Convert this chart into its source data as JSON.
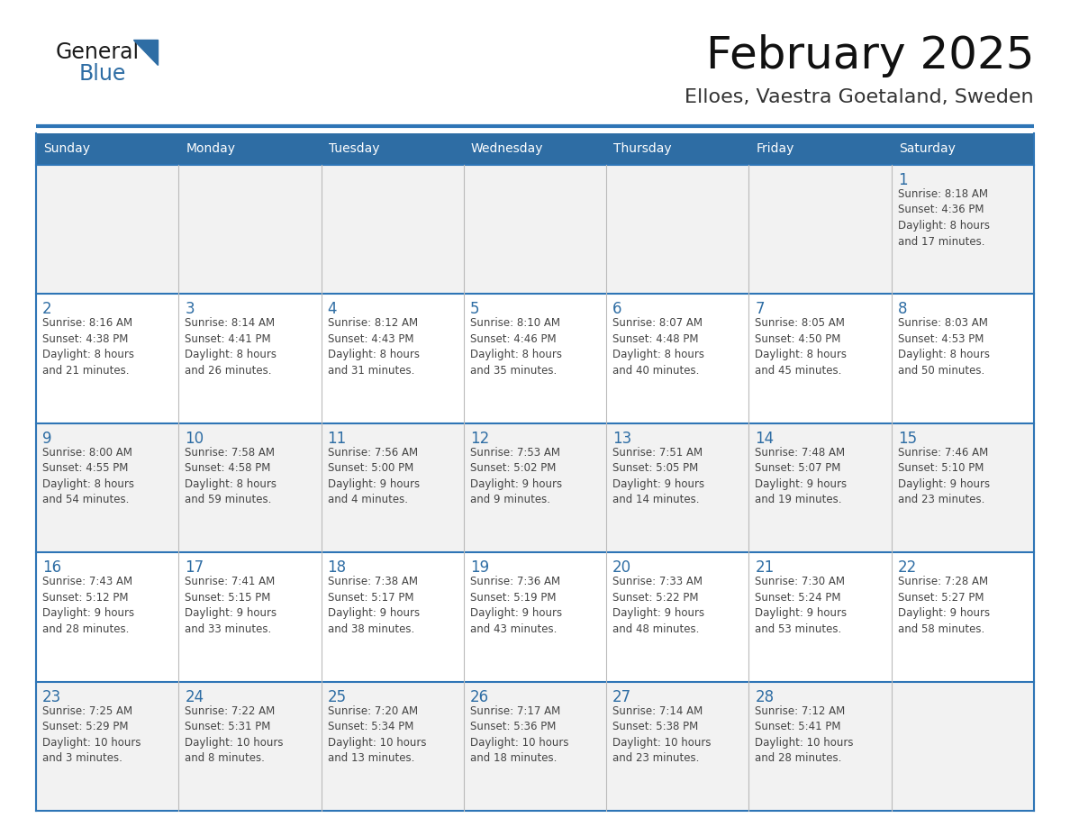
{
  "title": "February 2025",
  "subtitle": "Elloes, Vaestra Goetaland, Sweden",
  "header_bg": "#2E6DA4",
  "header_text_color": "#FFFFFF",
  "cell_bg_odd": "#F2F2F2",
  "cell_bg_even": "#FFFFFF",
  "day_number_color": "#2E6DA4",
  "text_color": "#444444",
  "line_color": "#2E75B6",
  "col_line_color": "#BBBBBB",
  "days_of_week": [
    "Sunday",
    "Monday",
    "Tuesday",
    "Wednesday",
    "Thursday",
    "Friday",
    "Saturday"
  ],
  "weeks": [
    [
      {
        "day": "",
        "info": ""
      },
      {
        "day": "",
        "info": ""
      },
      {
        "day": "",
        "info": ""
      },
      {
        "day": "",
        "info": ""
      },
      {
        "day": "",
        "info": ""
      },
      {
        "day": "",
        "info": ""
      },
      {
        "day": "1",
        "info": "Sunrise: 8:18 AM\nSunset: 4:36 PM\nDaylight: 8 hours\nand 17 minutes."
      }
    ],
    [
      {
        "day": "2",
        "info": "Sunrise: 8:16 AM\nSunset: 4:38 PM\nDaylight: 8 hours\nand 21 minutes."
      },
      {
        "day": "3",
        "info": "Sunrise: 8:14 AM\nSunset: 4:41 PM\nDaylight: 8 hours\nand 26 minutes."
      },
      {
        "day": "4",
        "info": "Sunrise: 8:12 AM\nSunset: 4:43 PM\nDaylight: 8 hours\nand 31 minutes."
      },
      {
        "day": "5",
        "info": "Sunrise: 8:10 AM\nSunset: 4:46 PM\nDaylight: 8 hours\nand 35 minutes."
      },
      {
        "day": "6",
        "info": "Sunrise: 8:07 AM\nSunset: 4:48 PM\nDaylight: 8 hours\nand 40 minutes."
      },
      {
        "day": "7",
        "info": "Sunrise: 8:05 AM\nSunset: 4:50 PM\nDaylight: 8 hours\nand 45 minutes."
      },
      {
        "day": "8",
        "info": "Sunrise: 8:03 AM\nSunset: 4:53 PM\nDaylight: 8 hours\nand 50 minutes."
      }
    ],
    [
      {
        "day": "9",
        "info": "Sunrise: 8:00 AM\nSunset: 4:55 PM\nDaylight: 8 hours\nand 54 minutes."
      },
      {
        "day": "10",
        "info": "Sunrise: 7:58 AM\nSunset: 4:58 PM\nDaylight: 8 hours\nand 59 minutes."
      },
      {
        "day": "11",
        "info": "Sunrise: 7:56 AM\nSunset: 5:00 PM\nDaylight: 9 hours\nand 4 minutes."
      },
      {
        "day": "12",
        "info": "Sunrise: 7:53 AM\nSunset: 5:02 PM\nDaylight: 9 hours\nand 9 minutes."
      },
      {
        "day": "13",
        "info": "Sunrise: 7:51 AM\nSunset: 5:05 PM\nDaylight: 9 hours\nand 14 minutes."
      },
      {
        "day": "14",
        "info": "Sunrise: 7:48 AM\nSunset: 5:07 PM\nDaylight: 9 hours\nand 19 minutes."
      },
      {
        "day": "15",
        "info": "Sunrise: 7:46 AM\nSunset: 5:10 PM\nDaylight: 9 hours\nand 23 minutes."
      }
    ],
    [
      {
        "day": "16",
        "info": "Sunrise: 7:43 AM\nSunset: 5:12 PM\nDaylight: 9 hours\nand 28 minutes."
      },
      {
        "day": "17",
        "info": "Sunrise: 7:41 AM\nSunset: 5:15 PM\nDaylight: 9 hours\nand 33 minutes."
      },
      {
        "day": "18",
        "info": "Sunrise: 7:38 AM\nSunset: 5:17 PM\nDaylight: 9 hours\nand 38 minutes."
      },
      {
        "day": "19",
        "info": "Sunrise: 7:36 AM\nSunset: 5:19 PM\nDaylight: 9 hours\nand 43 minutes."
      },
      {
        "day": "20",
        "info": "Sunrise: 7:33 AM\nSunset: 5:22 PM\nDaylight: 9 hours\nand 48 minutes."
      },
      {
        "day": "21",
        "info": "Sunrise: 7:30 AM\nSunset: 5:24 PM\nDaylight: 9 hours\nand 53 minutes."
      },
      {
        "day": "22",
        "info": "Sunrise: 7:28 AM\nSunset: 5:27 PM\nDaylight: 9 hours\nand 58 minutes."
      }
    ],
    [
      {
        "day": "23",
        "info": "Sunrise: 7:25 AM\nSunset: 5:29 PM\nDaylight: 10 hours\nand 3 minutes."
      },
      {
        "day": "24",
        "info": "Sunrise: 7:22 AM\nSunset: 5:31 PM\nDaylight: 10 hours\nand 8 minutes."
      },
      {
        "day": "25",
        "info": "Sunrise: 7:20 AM\nSunset: 5:34 PM\nDaylight: 10 hours\nand 13 minutes."
      },
      {
        "day": "26",
        "info": "Sunrise: 7:17 AM\nSunset: 5:36 PM\nDaylight: 10 hours\nand 18 minutes."
      },
      {
        "day": "27",
        "info": "Sunrise: 7:14 AM\nSunset: 5:38 PM\nDaylight: 10 hours\nand 23 minutes."
      },
      {
        "day": "28",
        "info": "Sunrise: 7:12 AM\nSunset: 5:41 PM\nDaylight: 10 hours\nand 28 minutes."
      },
      {
        "day": "",
        "info": ""
      }
    ]
  ],
  "logo_text1": "General",
  "logo_text2": "Blue",
  "logo_color1": "#1a1a1a",
  "logo_color2": "#2E6DA4",
  "logo_triangle_color": "#2E6DA4"
}
